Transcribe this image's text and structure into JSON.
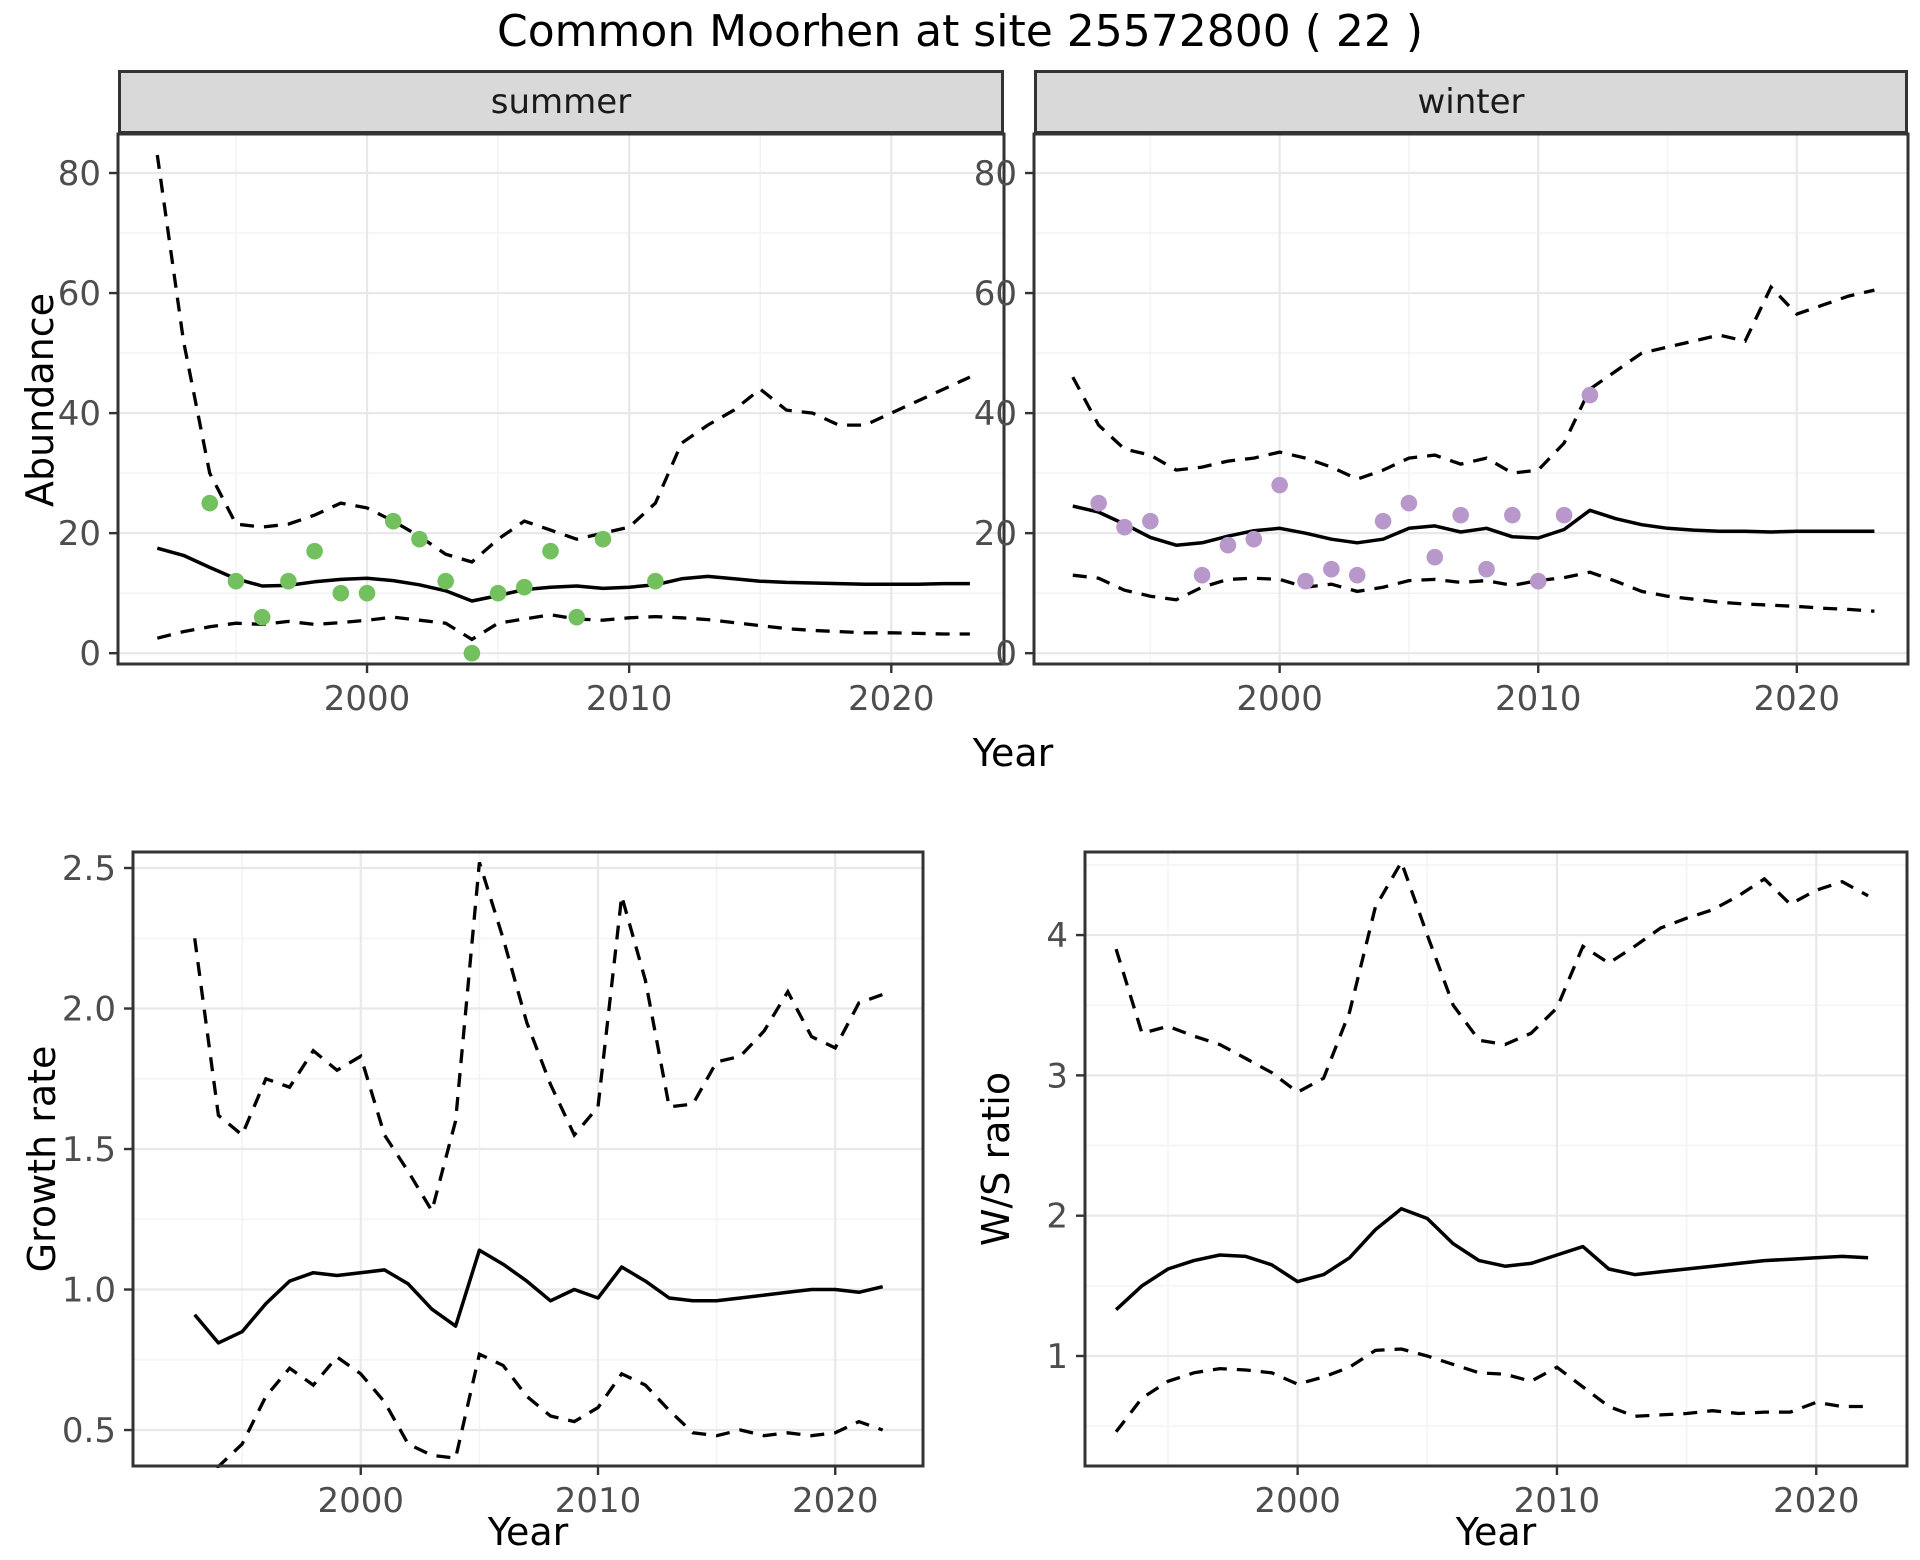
{
  "title": "Common Moorhen at site 25572800 ( 22 )",
  "labels": {
    "x_axis": "Year",
    "abundance": "Abundance",
    "growth": "Growth rate",
    "ws": "W/S ratio",
    "facet_summer": "summer",
    "facet_winter": "winter"
  },
  "colors": {
    "summer_points": "#73c05e",
    "winter_points": "#b897cb",
    "line": "#000000",
    "strip_bg": "#d9d9d9",
    "grid_major": "#e8e8e8",
    "grid_minor": "#f4f4f4",
    "axis_text": "#4d4d4d",
    "panel_border": "#333333"
  },
  "chart_data": [
    {
      "id": "summer",
      "type": "line+scatter",
      "facet_label": "summer",
      "xlabel": "Year",
      "ylabel": "Abundance",
      "xlim": [
        1990.5,
        2024.3
      ],
      "ylim": [
        -1.8,
        86.5
      ],
      "xticks": {
        "major": [
          2000,
          2010,
          2020
        ],
        "labels": [
          "2000",
          "2010",
          "2020"
        ],
        "minor": [
          1995,
          2005,
          2015
        ]
      },
      "yticks": {
        "major": [
          0,
          20,
          40,
          60,
          80
        ],
        "labels": [
          "0",
          "20",
          "40",
          "60",
          "80"
        ],
        "minor": [
          10,
          30,
          50,
          70
        ]
      },
      "lines": {
        "start_year": 1992,
        "fit": [
          17.5,
          16.3,
          14.3,
          12.4,
          11.2,
          11.3,
          11.9,
          12.3,
          12.5,
          12.1,
          11.4,
          10.4,
          8.7,
          9.6,
          10.6,
          11.0,
          11.2,
          10.8,
          11.0,
          11.4,
          12.4,
          12.8,
          12.4,
          12.0,
          11.8,
          11.7,
          11.6,
          11.5,
          11.5,
          11.5,
          11.6,
          11.6
        ],
        "ci_upper": [
          83,
          52,
          30,
          21.5,
          21,
          21.5,
          23,
          25,
          24.2,
          22,
          19.5,
          16.5,
          15.2,
          19,
          22,
          20.5,
          19,
          20,
          21,
          25,
          35,
          38,
          40.5,
          44,
          40.5,
          40,
          38,
          38,
          40,
          42,
          44,
          46
        ],
        "ci_lower": [
          2.5,
          3.6,
          4.4,
          5.0,
          4.8,
          5.3,
          4.8,
          5.1,
          5.5,
          6.0,
          5.5,
          5.0,
          2.3,
          5.0,
          5.7,
          6.4,
          5.7,
          5.5,
          5.9,
          6.1,
          5.9,
          5.6,
          5.1,
          4.6,
          4.1,
          3.8,
          3.6,
          3.4,
          3.4,
          3.3,
          3.2,
          3.2
        ]
      },
      "points": {
        "color_key": "summer_points",
        "years": [
          1994,
          1995,
          1996,
          1997,
          1998,
          1999,
          2000,
          2001,
          2002,
          2003,
          2004,
          2005,
          2006,
          2007,
          2008,
          2009,
          2011
        ],
        "values": [
          25,
          12,
          6,
          12,
          17,
          10,
          10,
          22,
          19,
          12,
          0,
          10,
          11,
          17,
          6,
          19,
          12
        ]
      }
    },
    {
      "id": "winter",
      "type": "line+scatter",
      "facet_label": "winter",
      "xlabel": "Year",
      "ylabel": "Abundance",
      "xlim": [
        1990.5,
        2024.3
      ],
      "ylim": [
        -1.8,
        86.5
      ],
      "xticks": {
        "major": [
          2000,
          2010,
          2020
        ],
        "labels": [
          "2000",
          "2010",
          "2020"
        ],
        "minor": [
          1995,
          2005,
          2015
        ]
      },
      "yticks": {
        "major": [
          0,
          20,
          40,
          60,
          80
        ],
        "labels": [
          "0",
          "20",
          "40",
          "60",
          "80"
        ],
        "minor": [
          10,
          30,
          50,
          70
        ]
      },
      "lines": {
        "start_year": 1992,
        "fit": [
          24.5,
          23.5,
          21.5,
          19.3,
          18.0,
          18.4,
          19.5,
          20.4,
          20.8,
          20.0,
          19.0,
          18.4,
          19.0,
          20.8,
          21.2,
          20.2,
          20.8,
          19.4,
          19.2,
          20.6,
          23.8,
          22.4,
          21.4,
          20.8,
          20.5,
          20.3,
          20.3,
          20.2,
          20.3,
          20.3,
          20.3,
          20.3
        ],
        "ci_upper": [
          46,
          38,
          34,
          33,
          30.5,
          31,
          32,
          32.5,
          33.5,
          32.5,
          31,
          29,
          30.5,
          32.5,
          33,
          31.5,
          32.5,
          30,
          30.5,
          35,
          44,
          47,
          50,
          51,
          52,
          53,
          52,
          61,
          56.5,
          58,
          59.5,
          60.5
        ],
        "ci_lower": [
          13,
          12.5,
          10.5,
          9.5,
          8.9,
          11,
          12.3,
          12.5,
          12.3,
          11,
          11.5,
          10.3,
          11,
          12.1,
          12.3,
          11.8,
          12.1,
          11.3,
          12.1,
          12.6,
          13.5,
          12,
          10.3,
          9.5,
          9,
          8.5,
          8.2,
          8,
          7.8,
          7.5,
          7.3,
          7
        ]
      },
      "points": {
        "color_key": "winter_points",
        "years": [
          1993,
          1994,
          1995,
          1997,
          1998,
          1999,
          2000,
          2001,
          2002,
          2003,
          2004,
          2005,
          2006,
          2007,
          2008,
          2009,
          2010,
          2011,
          2012
        ],
        "values": [
          25,
          21,
          22,
          13,
          18,
          19,
          28,
          12,
          14,
          13,
          22,
          25,
          16,
          23,
          14,
          23,
          12,
          23,
          43
        ]
      }
    },
    {
      "id": "growth",
      "type": "line",
      "facet_label": null,
      "xlabel": "Year",
      "ylabel": "Growth rate",
      "xlim": [
        1990.4,
        2023.7
      ],
      "ylim": [
        0.372,
        2.557
      ],
      "xticks": {
        "major": [
          2000,
          2010,
          2020
        ],
        "labels": [
          "2000",
          "2010",
          "2020"
        ],
        "minor": [
          1995,
          2005,
          2015
        ]
      },
      "yticks": {
        "major": [
          0.5,
          1.0,
          1.5,
          2.0,
          2.5
        ],
        "labels": [
          "0.5",
          "1.0",
          "1.5",
          "2.0",
          "2.5"
        ],
        "minor": [
          0.75,
          1.25,
          1.75,
          2.25
        ]
      },
      "lines": {
        "start_year": 1993,
        "fit": [
          0.91,
          0.81,
          0.85,
          0.95,
          1.03,
          1.06,
          1.05,
          1.06,
          1.07,
          1.02,
          0.93,
          0.87,
          1.14,
          1.09,
          1.03,
          0.96,
          1.0,
          0.97,
          1.08,
          1.03,
          0.97,
          0.96,
          0.96,
          0.97,
          0.98,
          0.99,
          1.0,
          1.0,
          0.99,
          1.01
        ],
        "ci_upper": [
          2.25,
          1.62,
          1.55,
          1.75,
          1.72,
          1.85,
          1.78,
          1.83,
          1.55,
          1.42,
          1.28,
          1.6,
          2.52,
          2.25,
          1.95,
          1.73,
          1.55,
          1.65,
          2.4,
          2.1,
          1.65,
          1.66,
          1.81,
          1.83,
          1.92,
          2.06,
          1.9,
          1.86,
          2.02,
          2.05
        ],
        "ci_lower": [
          0.33,
          0.37,
          0.45,
          0.62,
          0.72,
          0.66,
          0.76,
          0.7,
          0.6,
          0.45,
          0.41,
          0.4,
          0.77,
          0.73,
          0.62,
          0.55,
          0.53,
          0.58,
          0.7,
          0.66,
          0.57,
          0.49,
          0.48,
          0.5,
          0.48,
          0.49,
          0.48,
          0.49,
          0.53,
          0.5
        ]
      },
      "points": null
    },
    {
      "id": "ws",
      "type": "line",
      "facet_label": null,
      "xlabel": "Year",
      "ylabel": "W/S ratio",
      "xlim": [
        1991.8,
        2023.5
      ],
      "ylim": [
        0.216,
        4.592
      ],
      "xticks": {
        "major": [
          2000,
          2010,
          2020
        ],
        "labels": [
          "2000",
          "2010",
          "2020"
        ],
        "minor": [
          1995,
          2005,
          2015
        ]
      },
      "yticks": {
        "major": [
          1,
          2,
          3,
          4
        ],
        "labels": [
          "1",
          "2",
          "3",
          "4"
        ],
        "minor": [
          0.5,
          1.5,
          2.5,
          3.5,
          4.5
        ]
      },
      "lines": {
        "start_year": 1993,
        "fit": [
          1.33,
          1.5,
          1.62,
          1.68,
          1.72,
          1.71,
          1.65,
          1.53,
          1.58,
          1.7,
          1.9,
          2.05,
          1.98,
          1.8,
          1.68,
          1.64,
          1.66,
          1.72,
          1.78,
          1.62,
          1.58,
          1.6,
          1.62,
          1.64,
          1.66,
          1.68,
          1.69,
          1.7,
          1.71,
          1.7
        ],
        "ci_upper": [
          3.9,
          3.3,
          3.35,
          3.28,
          3.22,
          3.12,
          3.02,
          2.88,
          2.98,
          3.45,
          4.2,
          4.52,
          4.0,
          3.5,
          3.25,
          3.22,
          3.3,
          3.48,
          3.92,
          3.8,
          3.92,
          4.05,
          4.12,
          4.18,
          4.28,
          4.4,
          4.22,
          4.32,
          4.38,
          4.28
        ],
        "ci_lower": [
          0.46,
          0.7,
          0.82,
          0.88,
          0.91,
          0.9,
          0.88,
          0.8,
          0.85,
          0.92,
          1.04,
          1.05,
          1.0,
          0.94,
          0.88,
          0.87,
          0.82,
          0.92,
          0.78,
          0.64,
          0.57,
          0.58,
          0.59,
          0.61,
          0.59,
          0.6,
          0.6,
          0.67,
          0.64,
          0.64
        ]
      },
      "points": null
    }
  ]
}
